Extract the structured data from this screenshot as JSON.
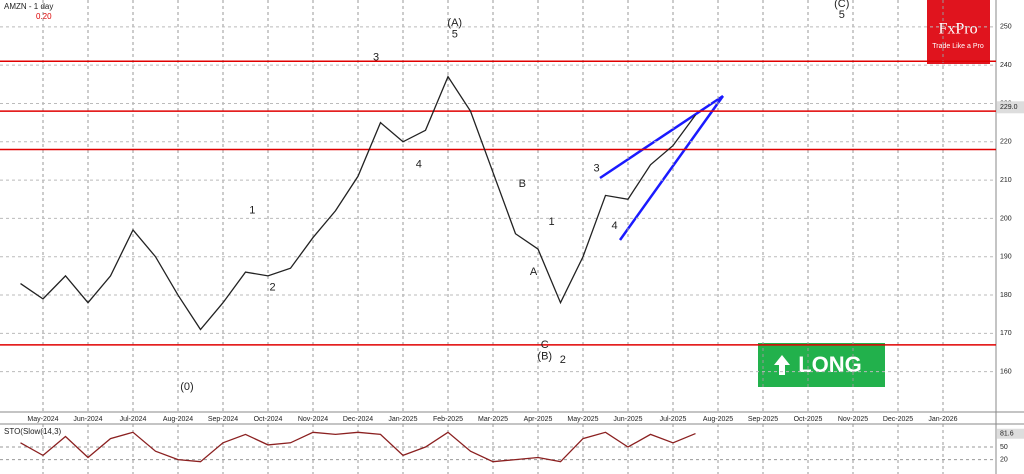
{
  "chart_data": [
    {
      "type": "line",
      "title": "AMZN - 1 day",
      "subtitle": "0.20",
      "color": "#222222",
      "categories": [
        null,
        "May-2024",
        null,
        "Jun-2024",
        null,
        "Jul-2024",
        null,
        "Aug-2024",
        null,
        "Sep-2024",
        null,
        "Oct-2024",
        null,
        "Nov-2024",
        null,
        "Dec-2024",
        null,
        "Jan-2025",
        null,
        "Feb-2025",
        null,
        "Mar-2025",
        null,
        "Apr-2025",
        null,
        "May-2025",
        null,
        "Jun-2025",
        null,
        "Jul-2025",
        null,
        "Aug-2025",
        null,
        "Sep-2025",
        null,
        "Oct-2025",
        null,
        "Nov-2025",
        null,
        "Dec-2025",
        null,
        "Jan-2026",
        null
      ],
      "values": [
        183,
        179,
        185,
        178,
        185,
        197,
        190,
        180,
        171,
        178,
        186,
        185,
        187,
        195,
        202,
        211,
        225,
        220,
        223,
        237,
        228,
        212,
        196,
        192,
        178,
        190,
        206,
        205,
        214,
        219,
        227,
        null,
        null,
        null,
        null,
        null,
        null,
        null,
        null,
        null,
        null,
        null,
        null
      ],
      "ylim": [
        150,
        257
      ],
      "yticks": [
        160,
        170,
        180,
        190,
        200,
        210,
        220,
        230,
        240,
        250
      ],
      "grid": true,
      "levels": [
        241,
        228,
        218,
        167
      ],
      "level_color": "#e00000",
      "last": {
        "value": 229,
        "label": "229.0"
      },
      "annotations": [
        {
          "text": "(0)",
          "at": [
            7.4,
            156
          ]
        },
        {
          "text": "1",
          "at": [
            10.3,
            202
          ]
        },
        {
          "text": "2",
          "at": [
            11.2,
            182
          ]
        },
        {
          "text": "3",
          "at": [
            15.8,
            242
          ]
        },
        {
          "text": "4",
          "at": [
            17.7,
            214
          ]
        },
        {
          "text": "(A)",
          "at": [
            19.3,
            251
          ]
        },
        {
          "text": "5",
          "at": [
            19.3,
            248
          ]
        },
        {
          "text": "A",
          "at": [
            22.8,
            186
          ]
        },
        {
          "text": "B",
          "at": [
            22.3,
            209
          ]
        },
        {
          "text": "C",
          "at": [
            23.3,
            167
          ]
        },
        {
          "text": "(B)",
          "at": [
            23.3,
            164
          ]
        },
        {
          "text": "1",
          "at": [
            23.6,
            199
          ]
        },
        {
          "text": "2",
          "at": [
            24.1,
            163
          ]
        },
        {
          "text": "3",
          "at": [
            25.6,
            213
          ]
        },
        {
          "text": "4",
          "at": [
            26.4,
            198
          ]
        },
        {
          "text": "(C)",
          "at": [
            36.5,
            256
          ]
        },
        {
          "text": "5",
          "at": [
            36.5,
            253
          ]
        }
      ],
      "signal": "LONG",
      "brand": "FxPro",
      "slogan": "Trade Like a Pro"
    },
    {
      "type": "line",
      "title": "STO(Slow(14,3)",
      "color": "#8b2020",
      "values": [
        60,
        30,
        75,
        25,
        70,
        85,
        40,
        20,
        15,
        60,
        80,
        55,
        60,
        85,
        80,
        85,
        80,
        30,
        50,
        85,
        40,
        15,
        20,
        25,
        15,
        70,
        85,
        50,
        80,
        60,
        82,
        null,
        null,
        null,
        null,
        null,
        null,
        null,
        null,
        null,
        null,
        null,
        null
      ],
      "ylim": [
        0,
        100
      ],
      "yticks": [
        20,
        50
      ],
      "last": {
        "value": 81.6,
        "label": "81.6"
      }
    }
  ]
}
